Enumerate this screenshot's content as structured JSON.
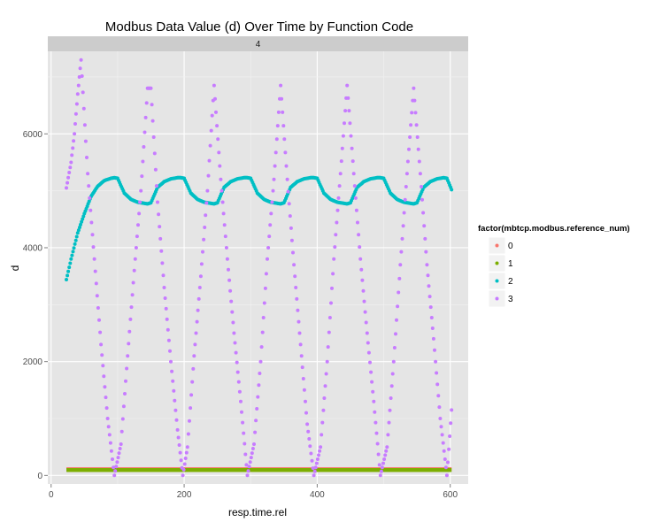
{
  "chart_data": {
    "type": "scatter",
    "title": "Modbus Data Value (d) Over Time by Function Code",
    "facet_label": "4",
    "xlabel": "resp.time.rel",
    "ylabel": "d",
    "xlim": [
      -5,
      627
    ],
    "ylim": [
      -150,
      7450
    ],
    "x_ticks": [
      0,
      200,
      400,
      600
    ],
    "x_tick_labels": [
      "0",
      "200",
      "400",
      "600"
    ],
    "y_ticks": [
      0,
      2000,
      4000,
      6000
    ],
    "y_tick_labels": [
      "0",
      "2000",
      "4000",
      "6000"
    ],
    "grid": true,
    "legend": {
      "title": "factor(mbtcp.modbus.reference_num)",
      "position": "right",
      "entries": [
        "0",
        "1",
        "2",
        "3"
      ]
    },
    "series": [
      {
        "name": "0",
        "color": "#F8766D",
        "x_range": [
          23,
          602
        ],
        "points": [
          [
            23,
            110
          ],
          [
            100,
            110
          ],
          [
            200,
            110
          ],
          [
            300,
            110
          ],
          [
            400,
            110
          ],
          [
            500,
            110
          ],
          [
            602,
            110
          ]
        ]
      },
      {
        "name": "1",
        "color": "#7CAE00",
        "x_range": [
          23,
          602
        ],
        "points": [
          [
            23,
            95
          ],
          [
            100,
            95
          ],
          [
            200,
            95
          ],
          [
            300,
            95
          ],
          [
            400,
            95
          ],
          [
            500,
            95
          ],
          [
            602,
            95
          ]
        ]
      },
      {
        "name": "2",
        "color": "#00BFC4",
        "points": [
          [
            23,
            3440
          ],
          [
            30,
            3800
          ],
          [
            40,
            4260
          ],
          [
            50,
            4600
          ],
          [
            60,
            4900
          ],
          [
            70,
            5080
          ],
          [
            80,
            5180
          ],
          [
            90,
            5220
          ],
          [
            95,
            5230
          ],
          [
            100,
            5220
          ],
          [
            110,
            4960
          ],
          [
            120,
            4850
          ],
          [
            130,
            4800
          ],
          [
            140,
            4780
          ],
          [
            145,
            4770
          ],
          [
            150,
            4790
          ],
          [
            160,
            5060
          ],
          [
            170,
            5160
          ],
          [
            180,
            5210
          ],
          [
            190,
            5230
          ],
          [
            195,
            5230
          ],
          [
            200,
            5220
          ],
          [
            210,
            4960
          ],
          [
            220,
            4850
          ],
          [
            230,
            4800
          ],
          [
            240,
            4780
          ],
          [
            245,
            4770
          ],
          [
            250,
            4790
          ],
          [
            260,
            5060
          ],
          [
            270,
            5160
          ],
          [
            280,
            5210
          ],
          [
            290,
            5230
          ],
          [
            295,
            5230
          ],
          [
            300,
            5220
          ],
          [
            310,
            4960
          ],
          [
            320,
            4850
          ],
          [
            330,
            4800
          ],
          [
            340,
            4780
          ],
          [
            345,
            4770
          ],
          [
            350,
            4790
          ],
          [
            360,
            5060
          ],
          [
            370,
            5160
          ],
          [
            380,
            5210
          ],
          [
            390,
            5230
          ],
          [
            395,
            5230
          ],
          [
            400,
            5220
          ],
          [
            410,
            4960
          ],
          [
            420,
            4850
          ],
          [
            430,
            4800
          ],
          [
            440,
            4780
          ],
          [
            445,
            4770
          ],
          [
            450,
            4790
          ],
          [
            460,
            5060
          ],
          [
            470,
            5160
          ],
          [
            480,
            5210
          ],
          [
            490,
            5230
          ],
          [
            495,
            5230
          ],
          [
            500,
            5220
          ],
          [
            510,
            4960
          ],
          [
            520,
            4850
          ],
          [
            530,
            4800
          ],
          [
            540,
            4780
          ],
          [
            545,
            4770
          ],
          [
            550,
            4790
          ],
          [
            560,
            5060
          ],
          [
            570,
            5160
          ],
          [
            580,
            5210
          ],
          [
            590,
            5230
          ],
          [
            595,
            5220
          ],
          [
            602,
            5020
          ]
        ]
      },
      {
        "name": "3",
        "color": "#C77CFF",
        "points": [
          [
            23,
            5050
          ],
          [
            30,
            5500
          ],
          [
            35,
            6000
          ],
          [
            40,
            6700
          ],
          [
            45,
            7300
          ],
          [
            55,
            5300
          ],
          [
            65,
            3800
          ],
          [
            75,
            2300
          ],
          [
            85,
            1000
          ],
          [
            95,
            0
          ],
          [
            105,
            550
          ],
          [
            115,
            2100
          ],
          [
            125,
            3600
          ],
          [
            135,
            5000
          ],
          [
            145,
            6800
          ],
          [
            150,
            6800
          ],
          [
            160,
            4800
          ],
          [
            170,
            3300
          ],
          [
            180,
            2000
          ],
          [
            190,
            800
          ],
          [
            198,
            0
          ],
          [
            205,
            500
          ],
          [
            215,
            2100
          ],
          [
            225,
            3500
          ],
          [
            235,
            5000
          ],
          [
            245,
            6850
          ],
          [
            255,
            5200
          ],
          [
            265,
            3800
          ],
          [
            275,
            2500
          ],
          [
            285,
            1300
          ],
          [
            295,
            0
          ],
          [
            305,
            550
          ],
          [
            315,
            2000
          ],
          [
            325,
            3800
          ],
          [
            335,
            5200
          ],
          [
            345,
            6850
          ],
          [
            355,
            5200
          ],
          [
            365,
            3700
          ],
          [
            375,
            2300
          ],
          [
            385,
            900
          ],
          [
            395,
            0
          ],
          [
            405,
            500
          ],
          [
            415,
            2000
          ],
          [
            425,
            3800
          ],
          [
            435,
            5300
          ],
          [
            445,
            6850
          ],
          [
            455,
            5300
          ],
          [
            465,
            3800
          ],
          [
            475,
            2500
          ],
          [
            485,
            1300
          ],
          [
            495,
            0
          ],
          [
            505,
            500
          ],
          [
            515,
            2000
          ],
          [
            525,
            3700
          ],
          [
            535,
            5300
          ],
          [
            545,
            6800
          ],
          [
            555,
            5300
          ],
          [
            565,
            3700
          ],
          [
            575,
            2400
          ],
          [
            585,
            1000
          ],
          [
            595,
            0
          ],
          [
            602,
            1150
          ]
        ]
      }
    ]
  }
}
